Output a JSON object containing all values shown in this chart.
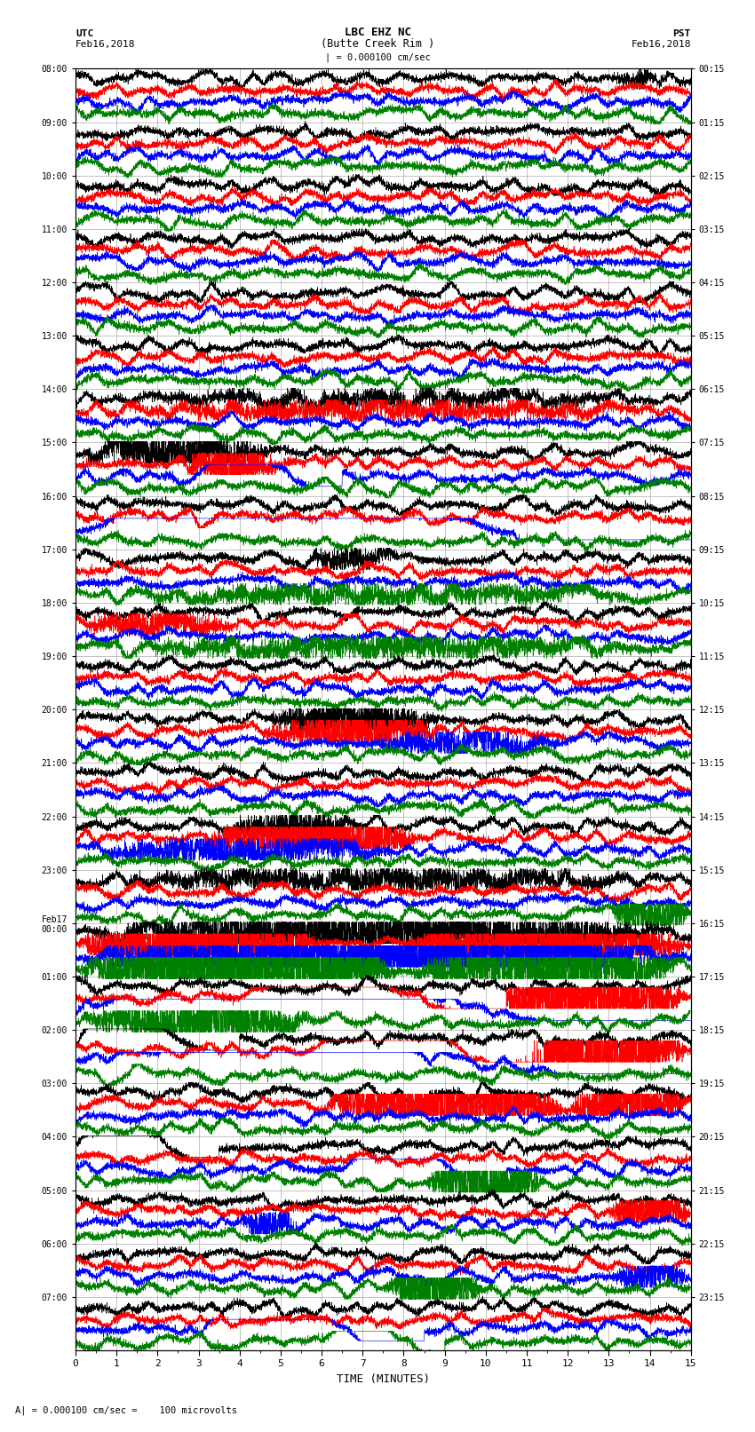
{
  "title_line1": "LBC EHZ NC",
  "title_line2": "(Butte Creek Rim )",
  "scale_label": "| = 0.000100 cm/sec",
  "left_label_top": "UTC",
  "left_label_date": "Feb16,2018",
  "right_label_top": "PST",
  "right_label_date": "Feb16,2018",
  "bottom_label": "TIME (MINUTES)",
  "footer_label": "= 0.000100 cm/sec =    100 microvolts",
  "utc_times": [
    "08:00",
    "09:00",
    "10:00",
    "11:00",
    "12:00",
    "13:00",
    "14:00",
    "15:00",
    "16:00",
    "17:00",
    "18:00",
    "19:00",
    "20:00",
    "21:00",
    "22:00",
    "23:00",
    "Feb17\n00:00",
    "01:00",
    "02:00",
    "03:00",
    "04:00",
    "05:00",
    "06:00",
    "07:00"
  ],
  "pst_times": [
    "00:15",
    "01:15",
    "02:15",
    "03:15",
    "04:15",
    "05:15",
    "06:15",
    "07:15",
    "08:15",
    "09:15",
    "10:15",
    "11:15",
    "12:15",
    "13:15",
    "14:15",
    "15:15",
    "16:15",
    "17:15",
    "18:15",
    "19:15",
    "20:15",
    "21:15",
    "22:15",
    "23:15"
  ],
  "n_rows": 24,
  "n_traces_per_row": 4,
  "colors": [
    "black",
    "red",
    "blue",
    "green"
  ],
  "x_min": 0,
  "x_max": 15,
  "x_ticks": [
    0,
    1,
    2,
    3,
    4,
    5,
    6,
    7,
    8,
    9,
    10,
    11,
    12,
    13,
    14,
    15
  ],
  "background_color": "#ffffff",
  "grid_color": "#888888",
  "fig_width": 8.5,
  "fig_height": 16.13,
  "dpi": 100
}
